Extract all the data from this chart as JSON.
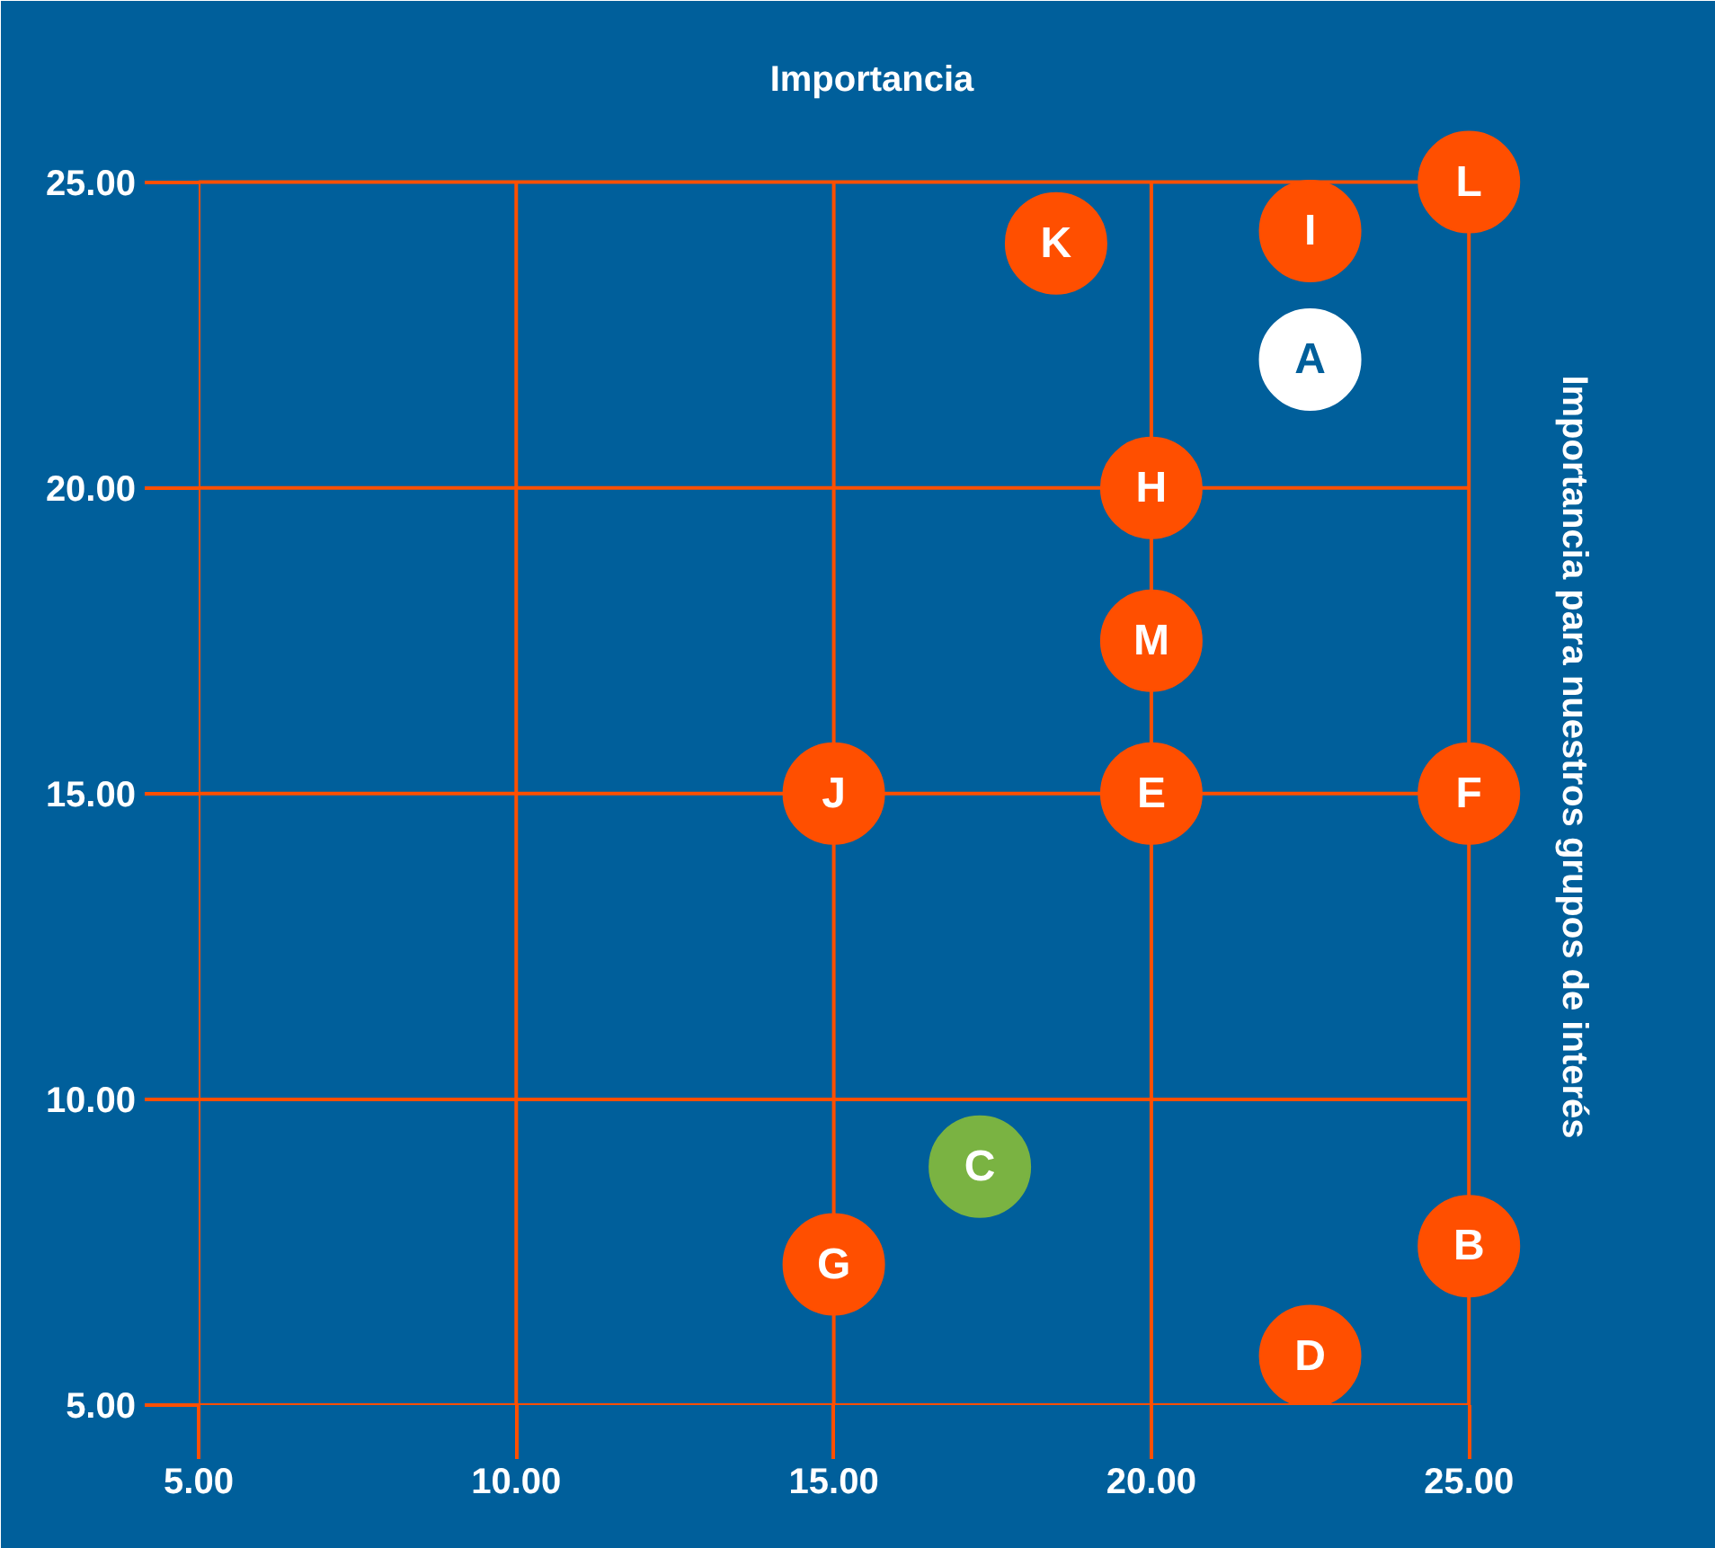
{
  "chart_data": {
    "type": "scatter",
    "title": "Importancia",
    "ylabel": "Importancia para nuestros grupos de interés",
    "x": [
      18.5,
      22.5,
      25,
      22.5,
      20,
      20,
      15,
      20,
      25,
      17.3,
      15,
      25,
      22.5
    ],
    "values": [
      24.0,
      24.2,
      25,
      22.1,
      20,
      17.5,
      15,
      15,
      15,
      8.9,
      7.3,
      7.6,
      5.8
    ],
    "colors": [
      "#ff4f00",
      "#ff4f00",
      "#ff4f00",
      "#ffffff",
      "#ff4f00",
      "#ff4f00",
      "#ff4f00",
      "#ff4f00",
      "#ff4f00",
      "#7ab342",
      "#ff4f00",
      "#ff4f00",
      "#ff4f00"
    ],
    "annotations": [
      {
        "text": "K",
        "x": 18.5,
        "y": 24.0
      },
      {
        "text": "I",
        "x": 22.5,
        "y": 24.2
      },
      {
        "text": "L",
        "x": 25,
        "y": 25
      },
      {
        "text": "A",
        "x": 22.5,
        "y": 22.1
      },
      {
        "text": "H",
        "x": 20,
        "y": 20
      },
      {
        "text": "M",
        "x": 20,
        "y": 17.5
      },
      {
        "text": "J",
        "x": 15,
        "y": 15
      },
      {
        "text": "E",
        "x": 20,
        "y": 15
      },
      {
        "text": "F",
        "x": 25,
        "y": 15
      },
      {
        "text": "C",
        "x": 17.3,
        "y": 8.9
      },
      {
        "text": "G",
        "x": 15,
        "y": 7.3
      },
      {
        "text": "B",
        "x": 25,
        "y": 7.6
      },
      {
        "text": "D",
        "x": 22.5,
        "y": 5.8
      }
    ],
    "xlim": [
      5,
      26.2
    ],
    "ylim": [
      5,
      26.2
    ],
    "xticks": [
      {
        "value": 5,
        "label": "5.00"
      },
      {
        "value": 10,
        "label": "10.00"
      },
      {
        "value": 15,
        "label": "15.00"
      },
      {
        "value": 20,
        "label": "20.00"
      },
      {
        "value": 25,
        "label": "25.00"
      }
    ],
    "yticks": [
      {
        "value": 5,
        "label": "5.00"
      },
      {
        "value": 10,
        "label": "10.00"
      },
      {
        "value": 15,
        "label": "15.00"
      },
      {
        "value": 20,
        "label": "20.00"
      },
      {
        "value": 25,
        "label": "25.00"
      }
    ],
    "grid": true,
    "marker": "circle"
  }
}
